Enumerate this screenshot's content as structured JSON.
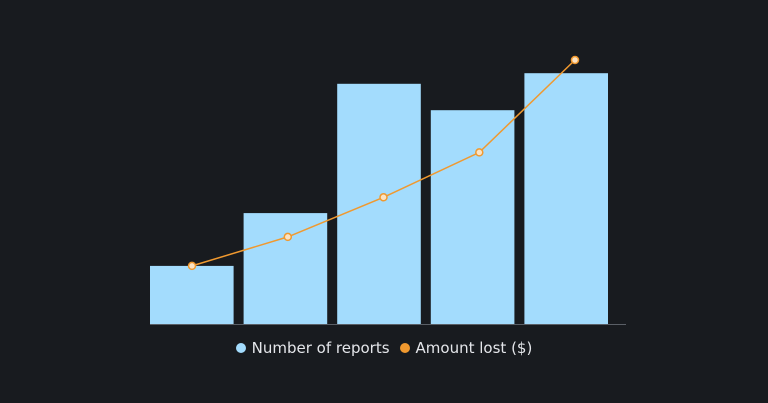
{
  "colors": {
    "background": "#181b1f",
    "bars": "#a3dcfd",
    "line": "#f0992f",
    "axis": "#5a5f66",
    "legend_text": "#e4e6ea"
  },
  "chart_data": {
    "type": "bar",
    "categories": [
      "",
      "",
      "",
      "",
      ""
    ],
    "series": [
      {
        "name": "Number of reports",
        "type": "bar",
        "values": [
          22,
          42,
          91,
          81,
          95
        ]
      },
      {
        "name": "Amount lost ($)",
        "type": "line",
        "values": [
          22,
          33,
          48,
          65,
          100
        ]
      }
    ],
    "title": "",
    "xlabel": "",
    "ylabel": "",
    "ylim": [
      0,
      100
    ],
    "grid": false,
    "legend_position": "bottom-center"
  },
  "legend": {
    "items": [
      {
        "label": "Number of reports",
        "color": "#a3dcfd"
      },
      {
        "label": "Amount lost ($)",
        "color": "#f0992f"
      }
    ]
  }
}
